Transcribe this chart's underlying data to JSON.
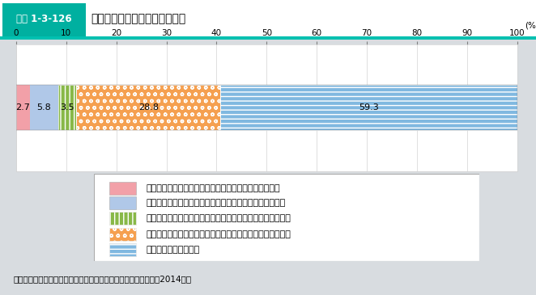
{
  "title_label": "図表 1-3-126",
  "title_text": "東京在住者の地方への移住意向",
  "title_bg": "#00b0a0",
  "title_border": "#00c0b0",
  "segments": [
    {
      "label": "今後１年以内に移住する予定・検討したいと思っている",
      "value": 2.7,
      "color": "#f2a0a8",
      "hatch": null
    },
    {
      "label": "今後５年をめどに移住する予定・検討したいと思っている",
      "value": 5.8,
      "color": "#b0c8e8",
      "hatch": null
    },
    {
      "label": "今後１０年をめどに移住する予定・検討したいと思っている",
      "value": 3.5,
      "color": "#88b848",
      "hatch": "|||"
    },
    {
      "label": "具体的な時期は決まっていないが、検討したいと思っている",
      "value": 28.8,
      "color": "#f5a050",
      "hatch": "oo"
    },
    {
      "label": "検討したいと思わない",
      "value": 59.3,
      "color": "#80b8e0",
      "hatch": "---"
    }
  ],
  "xlim": [
    0,
    100
  ],
  "xticks": [
    0,
    10,
    20,
    30,
    40,
    50,
    60,
    70,
    80,
    90,
    100
  ],
  "bg_color": "#d8dce0",
  "chart_bg": "#ffffff",
  "source": "資料：内閣官房「東京在住者の今後の移住に関する意向調査」（2014年）"
}
